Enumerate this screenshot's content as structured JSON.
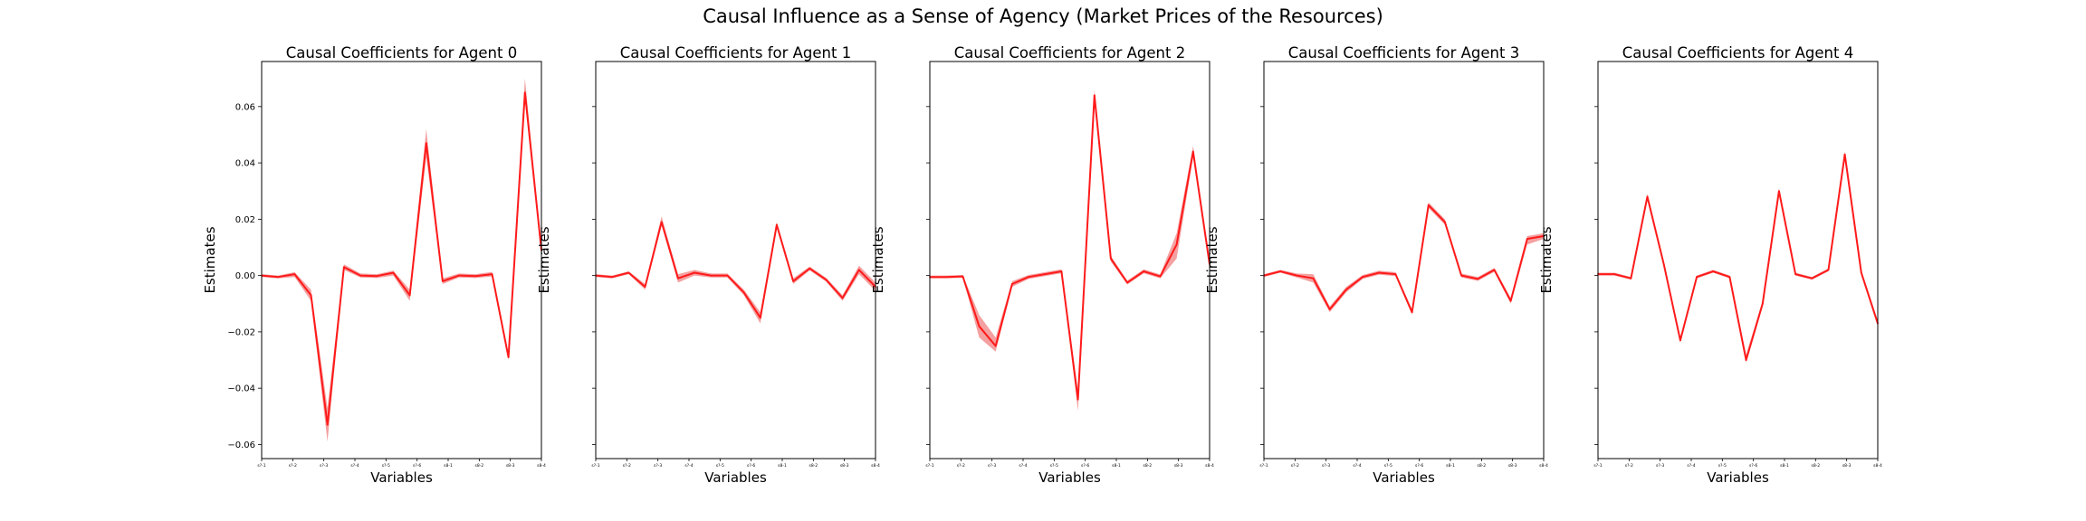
{
  "suptitle": "Causal Influence as a Sense of Agency (Market Prices of the Resources)",
  "colors": {
    "line": "#ff1a1a",
    "band": "#f08080",
    "axes": "#000000"
  },
  "chart_data": [
    {
      "type": "line",
      "title": "Causal Coefficients for Agent 0",
      "xlabel": "Variables",
      "ylabel": "Estimates",
      "ylim": [
        -0.065,
        0.076
      ],
      "yticks": [
        -0.06,
        -0.04,
        -0.02,
        0.0,
        0.02,
        0.04,
        0.06
      ],
      "ytick_labels": [
        "−0.06",
        "−0.04",
        "−0.02",
        "0.00",
        "0.02",
        "0.04",
        "0.06"
      ],
      "xtick_labels": [
        "s?-1",
        "s?-2",
        "s?-3",
        "s?-4",
        "s?-5",
        "s?-6",
        "s8-1",
        "s8-2",
        "s8-3",
        "s8-4"
      ],
      "series": [
        {
          "values": [
            0.0,
            -0.0005,
            0.0005,
            -0.007,
            -0.053,
            0.003,
            0.0,
            -0.0002,
            0.001,
            -0.007,
            0.047,
            -0.002,
            0.0,
            -0.0002,
            0.0005,
            -0.029,
            0.065,
            0.009
          ],
          "lower": [
            -0.0005,
            -0.001,
            -0.0005,
            -0.009,
            -0.059,
            0.002,
            -0.0007,
            -0.0009,
            0.0,
            -0.009,
            0.042,
            -0.003,
            -0.0007,
            -0.0009,
            -0.0003,
            -0.03,
            0.062,
            0.008
          ],
          "upper": [
            0.0005,
            0.0,
            0.0012,
            -0.005,
            -0.047,
            0.004,
            0.0007,
            0.0005,
            0.0017,
            -0.005,
            0.052,
            -0.001,
            0.0007,
            0.0005,
            0.0013,
            -0.028,
            0.07,
            0.01
          ]
        }
      ]
    },
    {
      "type": "line",
      "title": "Causal Coefficients for Agent 1",
      "xlabel": "Variables",
      "ylabel": "Estimates",
      "ylim": [
        -0.065,
        0.076
      ],
      "yticks": [
        -0.06,
        -0.04,
        -0.02,
        0.0,
        0.02,
        0.04,
        0.06
      ],
      "ytick_labels": [
        "",
        "",
        "",
        "",
        "",
        "",
        ""
      ],
      "xtick_labels": [
        "s?-1",
        "s?-2",
        "s?-3",
        "s?-4",
        "s?-5",
        "s?-6",
        "s8-1",
        "s8-2",
        "s8-3",
        "s8-4"
      ],
      "series": [
        {
          "values": [
            0.0,
            -0.0005,
            0.001,
            -0.004,
            0.019,
            -0.001,
            0.001,
            0.0,
            0.0,
            -0.006,
            -0.015,
            0.018,
            -0.002,
            0.0025,
            -0.0015,
            -0.008,
            0.002,
            -0.004
          ],
          "lower": [
            -0.0005,
            -0.001,
            0.0005,
            -0.005,
            0.018,
            -0.0025,
            0.0,
            -0.0007,
            -0.0007,
            -0.007,
            -0.017,
            0.017,
            -0.003,
            0.0018,
            -0.0022,
            -0.009,
            0.0005,
            -0.0055
          ],
          "upper": [
            0.0005,
            0.0,
            0.0015,
            -0.003,
            0.021,
            0.0005,
            0.002,
            0.0007,
            0.0007,
            -0.005,
            -0.013,
            0.019,
            -0.001,
            0.0032,
            -0.0008,
            -0.007,
            0.0035,
            -0.0025
          ]
        }
      ]
    },
    {
      "type": "line",
      "title": "Causal Coefficients for Agent 2",
      "xlabel": "Variables",
      "ylabel": "Estimates",
      "ylim": [
        -0.065,
        0.076
      ],
      "yticks": [
        -0.06,
        -0.04,
        -0.02,
        0.0,
        0.02,
        0.04,
        0.06
      ],
      "ytick_labels": [
        "",
        "",
        "",
        "",
        "",
        "",
        ""
      ],
      "xtick_labels": [
        "s?-1",
        "s?-2",
        "s?-3",
        "s?-4",
        "s?-5",
        "s?-6",
        "s8-1",
        "s8-2",
        "s8-3",
        "s8-4"
      ],
      "series": [
        {
          "values": [
            -0.0005,
            -0.0005,
            -0.0003,
            -0.018,
            -0.025,
            -0.003,
            -0.0005,
            0.0005,
            0.0015,
            -0.044,
            0.064,
            0.006,
            -0.0025,
            0.0015,
            -0.0003,
            0.011,
            0.044,
            0.004
          ],
          "lower": [
            -0.001,
            -0.001,
            -0.0008,
            -0.022,
            -0.027,
            -0.004,
            -0.0012,
            -0.0002,
            0.0008,
            -0.048,
            0.061,
            0.005,
            -0.0032,
            0.0008,
            -0.001,
            0.006,
            0.042,
            0.003
          ],
          "upper": [
            0.0,
            0.0,
            0.0002,
            -0.014,
            -0.022,
            -0.002,
            0.0002,
            0.0012,
            0.0022,
            -0.041,
            0.066,
            0.007,
            -0.0018,
            0.0022,
            0.0004,
            0.015,
            0.046,
            0.005
          ]
        }
      ]
    },
    {
      "type": "line",
      "title": "Causal Coefficients for Agent 3",
      "xlabel": "Variables",
      "ylabel": "Estimates",
      "ylim": [
        -0.065,
        0.076
      ],
      "yticks": [
        -0.06,
        -0.04,
        -0.02,
        0.0,
        0.02,
        0.04,
        0.06
      ],
      "ytick_labels": [
        "",
        "",
        "",
        "",
        "",
        "",
        ""
      ],
      "xtick_labels": [
        "s?-1",
        "s?-2",
        "s?-3",
        "s?-4",
        "s?-5",
        "s?-6",
        "s8-1",
        "s8-2",
        "s8-3",
        "s8-4"
      ],
      "series": [
        {
          "values": [
            0.0,
            0.0015,
            0.0,
            -0.001,
            -0.012,
            -0.005,
            -0.0005,
            0.001,
            0.0005,
            -0.013,
            0.025,
            0.019,
            0.0,
            -0.0012,
            0.002,
            -0.009,
            0.013,
            0.014
          ],
          "lower": [
            -0.0005,
            0.001,
            -0.0007,
            -0.0025,
            -0.013,
            -0.006,
            -0.0012,
            0.0003,
            -0.0002,
            -0.014,
            0.024,
            0.018,
            -0.0007,
            -0.0019,
            0.0013,
            -0.01,
            0.011,
            0.013
          ],
          "upper": [
            0.0005,
            0.002,
            0.0007,
            0.0005,
            -0.011,
            -0.004,
            0.0002,
            0.0017,
            0.0012,
            -0.012,
            0.026,
            0.02,
            0.0007,
            -0.0005,
            0.0027,
            -0.008,
            0.014,
            0.015
          ]
        }
      ]
    },
    {
      "type": "line",
      "title": "Causal Coefficients for Agent 4",
      "xlabel": "Variables",
      "ylabel": "Estimates",
      "ylim": [
        -0.065,
        0.076
      ],
      "yticks": [
        -0.06,
        -0.04,
        -0.02,
        0.0,
        0.02,
        0.04,
        0.06
      ],
      "ytick_labels": [
        "",
        "",
        "",
        "",
        "",
        "",
        ""
      ],
      "xtick_labels": [
        "s?-1",
        "s?-2",
        "s?-3",
        "s?-4",
        "s?-5",
        "s?-6",
        "s8-1",
        "s8-2",
        "s8-3",
        "s8-4"
      ],
      "series": [
        {
          "values": [
            0.0005,
            0.0005,
            -0.001,
            0.028,
            0.004,
            -0.023,
            -0.0005,
            0.0015,
            -0.0005,
            -0.03,
            -0.01,
            0.03,
            0.0005,
            -0.001,
            0.002,
            0.043,
            0.001,
            -0.017
          ],
          "lower": [
            0.0,
            0.0,
            -0.0015,
            0.027,
            0.003,
            -0.024,
            -0.001,
            0.001,
            -0.001,
            -0.031,
            -0.011,
            0.029,
            0.0,
            -0.0015,
            0.0015,
            0.042,
            0.0,
            -0.018
          ],
          "upper": [
            0.001,
            0.001,
            -0.0005,
            0.029,
            0.005,
            -0.022,
            0.0,
            0.002,
            0.0,
            -0.028,
            -0.009,
            0.031,
            0.001,
            -0.0005,
            0.0025,
            0.044,
            0.002,
            -0.016
          ]
        }
      ]
    }
  ]
}
